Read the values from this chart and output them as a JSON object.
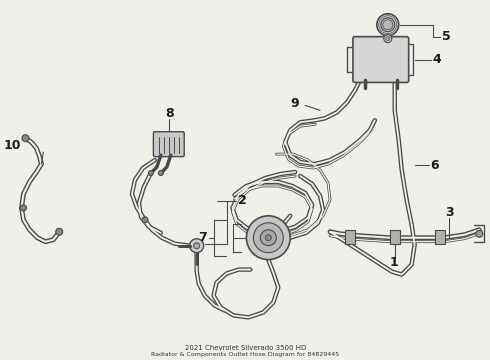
{
  "bg_color": "#f0f0eb",
  "line_color": "#4a4a4a",
  "label_color": "#1a1a1a",
  "fig_w": 4.9,
  "fig_h": 3.6,
  "dpi": 100,
  "xlim": [
    0,
    490
  ],
  "ylim": [
    0,
    360
  ]
}
